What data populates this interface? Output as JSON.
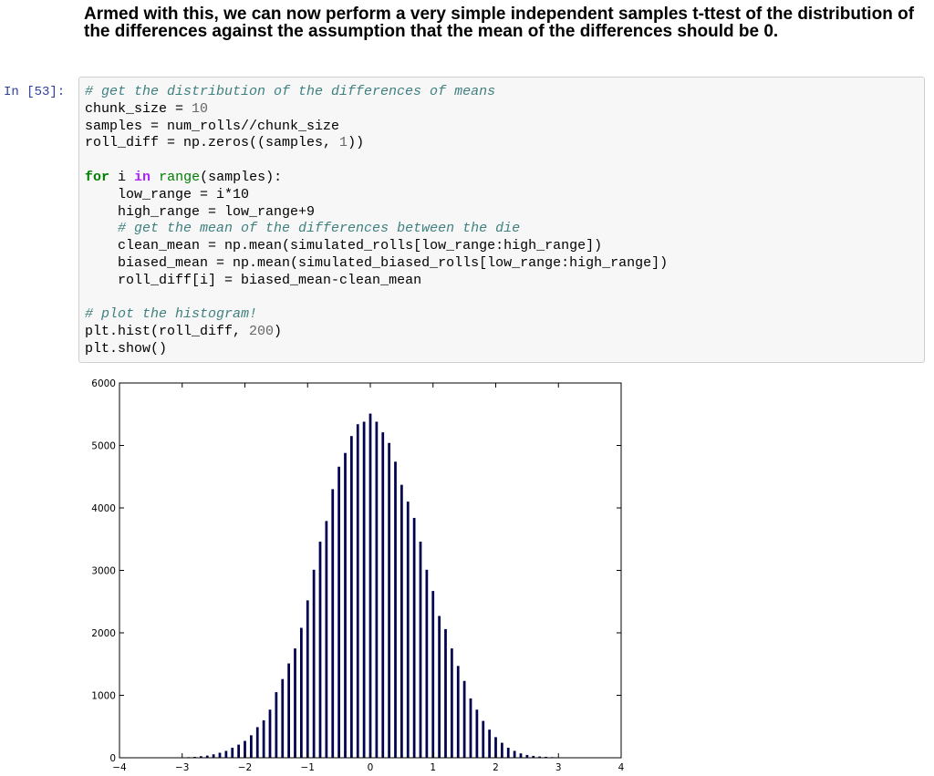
{
  "heading": "Armed with this, we can now perform a very simple independent samples t-ttest of the distribution of the differences against the assumption that the mean of the differences should be 0.",
  "cell": {
    "prompt": "In [53]:",
    "lines": [
      {
        "indent": 0,
        "tokens": [
          {
            "t": "cm",
            "v": "# get the distribution of the differences of means"
          }
        ]
      },
      {
        "indent": 0,
        "tokens": [
          {
            "t": "",
            "v": "chunk_size = "
          },
          {
            "t": "nu",
            "v": "10"
          }
        ]
      },
      {
        "indent": 0,
        "tokens": [
          {
            "t": "",
            "v": "samples = num_rolls//chunk_size"
          }
        ]
      },
      {
        "indent": 0,
        "tokens": [
          {
            "t": "",
            "v": "roll_diff = np.zeros((samples, "
          },
          {
            "t": "nu",
            "v": "1"
          },
          {
            "t": "",
            "v": "))"
          }
        ]
      },
      {
        "indent": 0,
        "tokens": []
      },
      {
        "indent": 0,
        "tokens": [
          {
            "t": "kw",
            "v": "for"
          },
          {
            "t": "",
            "v": " i "
          },
          {
            "t": "op",
            "v": "in"
          },
          {
            "t": "",
            "v": " "
          },
          {
            "t": "bi",
            "v": "range"
          },
          {
            "t": "",
            "v": "(samples):"
          }
        ]
      },
      {
        "indent": 1,
        "tokens": [
          {
            "t": "",
            "v": "low_range = i*10"
          }
        ]
      },
      {
        "indent": 1,
        "tokens": [
          {
            "t": "",
            "v": "high_range = low_range+9"
          }
        ]
      },
      {
        "indent": 1,
        "tokens": [
          {
            "t": "cm",
            "v": "# get the mean of the differences between the die"
          }
        ]
      },
      {
        "indent": 1,
        "tokens": [
          {
            "t": "",
            "v": "clean_mean = np.mean(simulated_rolls[low_range:high_range])"
          }
        ]
      },
      {
        "indent": 1,
        "tokens": [
          {
            "t": "",
            "v": "biased_mean = np.mean(simulated_biased_rolls[low_range:high_range])"
          }
        ]
      },
      {
        "indent": 1,
        "tokens": [
          {
            "t": "",
            "v": "roll_diff[i] = biased_mean-clean_mean"
          }
        ]
      },
      {
        "indent": 0,
        "tokens": []
      },
      {
        "indent": 0,
        "tokens": [
          {
            "t": "cm",
            "v": "# plot the histogram!"
          }
        ]
      },
      {
        "indent": 0,
        "tokens": [
          {
            "t": "",
            "v": "plt.hist(roll_diff, "
          },
          {
            "t": "nu",
            "v": "200"
          },
          {
            "t": "",
            "v": ")"
          }
        ]
      },
      {
        "indent": 0,
        "tokens": [
          {
            "t": "",
            "v": "plt.show()"
          }
        ]
      }
    ]
  },
  "colors": {
    "bar": "#000050",
    "comment": "#408080",
    "keyword": "#008000",
    "operator": "#aa22ff",
    "number": "#666666",
    "prompt": "#303f9f",
    "cell_bg": "#f7f7f7",
    "cell_border": "#cfcfcf"
  },
  "chart_data": {
    "type": "bar",
    "title": "",
    "xlabel": "",
    "ylabel": "",
    "xlim": [
      -4,
      4
    ],
    "ylim": [
      0,
      6000
    ],
    "xticks": [
      -4,
      -3,
      -2,
      -1,
      0,
      1,
      2,
      3,
      4
    ],
    "yticks": [
      0,
      1000,
      2000,
      3000,
      4000,
      5000,
      6000
    ],
    "bar_width": 0.04,
    "grid": false,
    "x": [
      -2.9,
      -2.8,
      -2.7,
      -2.6,
      -2.5,
      -2.4,
      -2.3,
      -2.2,
      -2.1,
      -2.0,
      -1.9,
      -1.8,
      -1.7,
      -1.6,
      -1.5,
      -1.4,
      -1.3,
      -1.2,
      -1.1,
      -1.0,
      -0.9,
      -0.8,
      -0.7,
      -0.6,
      -0.5,
      -0.4,
      -0.3,
      -0.2,
      -0.1,
      0.0,
      0.1,
      0.2,
      0.3,
      0.4,
      0.5,
      0.6,
      0.7,
      0.8,
      0.9,
      1.0,
      1.1,
      1.2,
      1.3,
      1.4,
      1.5,
      1.6,
      1.7,
      1.8,
      1.9,
      2.0,
      2.1,
      2.2,
      2.3,
      2.4,
      2.5,
      2.6,
      2.7,
      2.8,
      2.9
    ],
    "values": [
      10,
      15,
      25,
      35,
      55,
      80,
      110,
      160,
      210,
      270,
      360,
      490,
      600,
      770,
      1050,
      1260,
      1510,
      1750,
      2080,
      2520,
      3010,
      3460,
      3790,
      4300,
      4660,
      4880,
      5150,
      5340,
      5380,
      5510,
      5380,
      5210,
      5040,
      4740,
      4370,
      4100,
      3840,
      3460,
      3010,
      2670,
      2270,
      2060,
      1750,
      1470,
      1230,
      950,
      770,
      590,
      450,
      330,
      240,
      160,
      110,
      70,
      45,
      30,
      20,
      15,
      10
    ]
  }
}
